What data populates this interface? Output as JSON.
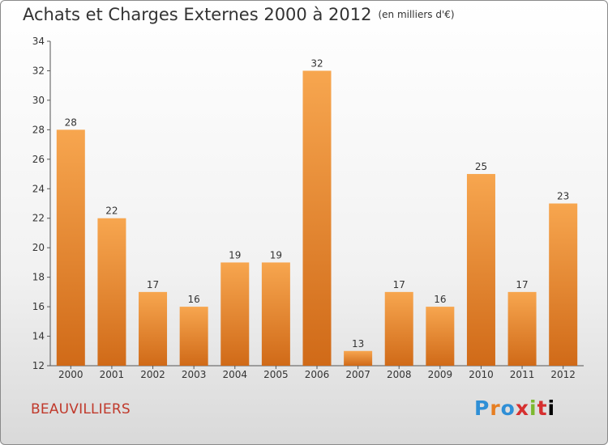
{
  "chart_data": {
    "type": "bar",
    "title": "Achats et Charges Externes 2000 à 2012",
    "subtitle": "(en milliers d'€)",
    "categories": [
      "2000",
      "2001",
      "2002",
      "2003",
      "2004",
      "2005",
      "2006",
      "2007",
      "2008",
      "2009",
      "2010",
      "2011",
      "2012"
    ],
    "values": [
      28,
      22,
      17,
      16,
      19,
      19,
      32,
      13,
      17,
      16,
      25,
      17,
      23
    ],
    "ylim": [
      12,
      34
    ],
    "yticks": [
      12,
      14,
      16,
      18,
      20,
      22,
      24,
      26,
      28,
      30,
      32,
      34
    ],
    "grid": false,
    "bar_color_top": "#f7a64f",
    "bar_color_bottom": "#d06a18"
  },
  "commune": "BEAUVILLIERS",
  "logo": {
    "letters": [
      "P",
      "r",
      "o",
      "x",
      "i",
      "t",
      "i"
    ]
  }
}
